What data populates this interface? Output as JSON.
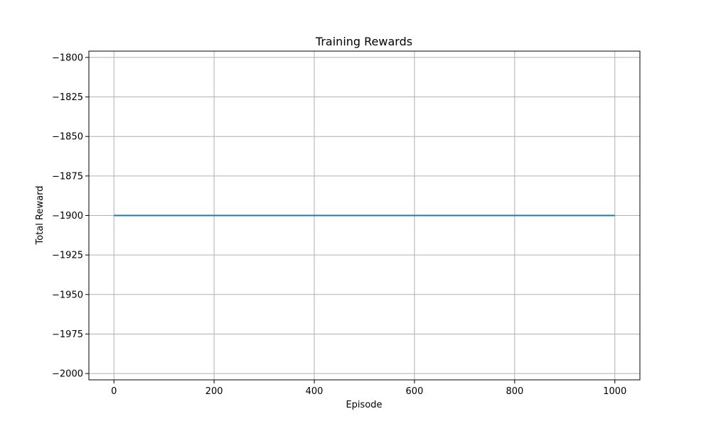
{
  "chart_data": {
    "type": "line",
    "title": "Training Rewards",
    "xlabel": "Episode",
    "ylabel": "Total Reward",
    "xlim": [
      -50,
      1050
    ],
    "ylim": [
      -2004,
      -1796
    ],
    "xticks": [
      0,
      200,
      400,
      600,
      800,
      1000
    ],
    "xtick_labels": [
      "0",
      "200",
      "400",
      "600",
      "800",
      "1000"
    ],
    "yticks": [
      -1800,
      -1825,
      -1850,
      -1875,
      -1900,
      -1925,
      -1950,
      -1975,
      -2000
    ],
    "ytick_labels": [
      "−1800",
      "−1825",
      "−1850",
      "−1875",
      "−1900",
      "−1925",
      "−1950",
      "−1975",
      "−2000"
    ],
    "grid": true,
    "series": [
      {
        "x": [
          0,
          1000
        ],
        "y": [
          -1900,
          -1900
        ],
        "color": "#1f77b4"
      }
    ]
  }
}
